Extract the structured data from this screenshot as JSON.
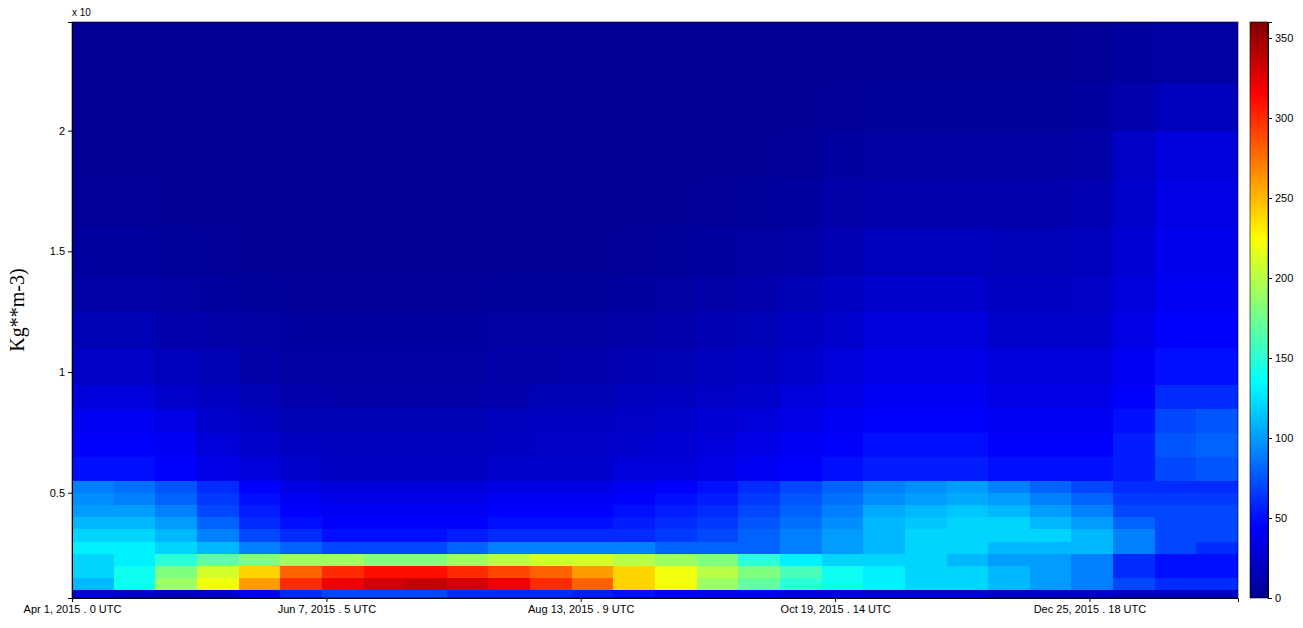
{
  "chart_data": {
    "type": "heatmap",
    "y_axis_multiplier": "x 10",
    "y_label": "Kg**m-3)",
    "xlim": [
      "2015-04-01T00:00Z",
      "2016-02-03T00:00Z"
    ],
    "xticks": [
      {
        "value": "2015-04-01T00:00Z",
        "label": "Apr 1, 2015 . 0 UTC"
      },
      {
        "value": "2015-06-07T05:00Z",
        "label": "Jun 7, 2015 . 5 UTC"
      },
      {
        "value": "2015-08-13T09:00Z",
        "label": "Aug 13, 2015 . 9 UTC"
      },
      {
        "value": "2015-10-19T14:00Z",
        "label": "Oct 19, 2015 . 14 UTC"
      },
      {
        "value": "2015-12-25T18:00Z",
        "label": "Dec 25, 2015 . 18 UTC"
      }
    ],
    "ylim": [
      0.064,
      2.45
    ],
    "yticks": [
      0.5,
      1,
      1.5,
      2
    ],
    "x": [
      "2015-04-01T00:00Z",
      "2015-04-12T00:00Z",
      "2015-04-23T00:00Z",
      "2015-05-04T00:00Z",
      "2015-05-15T00:00Z",
      "2015-05-26T00:00Z",
      "2015-06-06T00:00Z",
      "2015-06-17T00:00Z",
      "2015-06-28T00:00Z",
      "2015-07-09T00:00Z",
      "2015-07-20T00:00Z",
      "2015-07-31T00:00Z",
      "2015-08-11T00:00Z",
      "2015-08-22T00:00Z",
      "2015-09-02T00:00Z",
      "2015-09-13T00:00Z",
      "2015-09-24T00:00Z",
      "2015-10-05T00:00Z",
      "2015-10-16T00:00Z",
      "2015-10-27T00:00Z",
      "2015-11-07T00:00Z",
      "2015-11-18T00:00Z",
      "2015-11-29T00:00Z",
      "2015-12-10T00:00Z",
      "2015-12-21T00:00Z",
      "2016-01-01T00:00Z",
      "2016-01-12T00:00Z",
      "2016-01-23T00:00Z"
    ],
    "y": [
      0.064,
      0.1,
      0.15,
      0.2,
      0.25,
      0.3,
      0.35,
      0.4,
      0.45,
      0.5,
      0.55,
      0.65,
      0.75,
      0.85,
      0.95,
      1.1,
      1.25,
      1.4,
      1.6,
      1.8,
      2.0,
      2.2
    ],
    "values": [
      [
        30,
        25,
        20,
        25,
        40,
        60,
        70,
        70,
        70,
        60,
        60,
        60,
        55,
        50,
        45,
        40,
        40,
        35,
        35,
        30,
        30,
        30,
        25,
        25,
        25,
        20,
        20,
        20
      ],
      [
        110,
        140,
        190,
        220,
        260,
        300,
        320,
        330,
        335,
        330,
        320,
        300,
        280,
        240,
        220,
        190,
        170,
        150,
        140,
        130,
        120,
        120,
        110,
        100,
        90,
        70,
        60,
        60
      ],
      [
        120,
        140,
        180,
        210,
        240,
        280,
        300,
        310,
        310,
        300,
        290,
        280,
        260,
        240,
        220,
        200,
        180,
        160,
        140,
        130,
        120,
        120,
        110,
        100,
        90,
        60,
        50,
        50
      ],
      [
        120,
        130,
        150,
        170,
        180,
        190,
        190,
        180,
        180,
        190,
        200,
        210,
        210,
        200,
        190,
        180,
        150,
        130,
        120,
        120,
        120,
        110,
        100,
        100,
        90,
        60,
        50,
        50
      ],
      [
        130,
        130,
        120,
        110,
        90,
        80,
        70,
        70,
        70,
        80,
        90,
        90,
        90,
        90,
        80,
        80,
        80,
        90,
        100,
        110,
        120,
        120,
        110,
        110,
        110,
        90,
        70,
        60
      ],
      [
        120,
        120,
        110,
        90,
        70,
        60,
        50,
        50,
        50,
        55,
        60,
        60,
        60,
        60,
        65,
        70,
        80,
        90,
        100,
        110,
        120,
        120,
        120,
        120,
        110,
        90,
        70,
        70
      ],
      [
        110,
        110,
        100,
        80,
        60,
        50,
        45,
        45,
        45,
        45,
        50,
        50,
        50,
        55,
        60,
        65,
        75,
        85,
        95,
        110,
        115,
        120,
        120,
        110,
        100,
        80,
        70,
        70
      ],
      [
        100,
        100,
        90,
        70,
        55,
        45,
        40,
        40,
        40,
        40,
        45,
        45,
        45,
        50,
        55,
        60,
        70,
        80,
        90,
        105,
        110,
        115,
        110,
        100,
        90,
        70,
        70,
        70
      ],
      [
        95,
        90,
        80,
        65,
        50,
        40,
        35,
        35,
        35,
        35,
        40,
        40,
        40,
        45,
        50,
        55,
        65,
        75,
        85,
        95,
        100,
        105,
        100,
        90,
        80,
        65,
        65,
        65
      ],
      [
        90,
        85,
        75,
        60,
        45,
        35,
        30,
        30,
        30,
        30,
        35,
        35,
        35,
        40,
        45,
        50,
        60,
        70,
        80,
        90,
        95,
        100,
        90,
        80,
        70,
        60,
        60,
        60
      ],
      [
        50,
        50,
        45,
        35,
        30,
        25,
        20,
        20,
        20,
        20,
        25,
        25,
        25,
        30,
        30,
        35,
        40,
        45,
        50,
        55,
        55,
        55,
        50,
        50,
        50,
        55,
        70,
        75
      ],
      [
        45,
        45,
        40,
        30,
        25,
        20,
        18,
        18,
        18,
        18,
        20,
        22,
        22,
        25,
        28,
        30,
        35,
        40,
        45,
        50,
        50,
        50,
        45,
        45,
        45,
        55,
        75,
        80
      ],
      [
        40,
        40,
        35,
        25,
        20,
        15,
        15,
        15,
        15,
        15,
        18,
        20,
        20,
        22,
        25,
        28,
        30,
        35,
        40,
        45,
        45,
        45,
        40,
        40,
        40,
        50,
        70,
        75
      ],
      [
        30,
        30,
        25,
        20,
        15,
        12,
        10,
        10,
        10,
        10,
        12,
        15,
        15,
        18,
        20,
        22,
        25,
        30,
        35,
        40,
        40,
        40,
        35,
        35,
        35,
        45,
        60,
        60
      ],
      [
        22,
        22,
        18,
        15,
        10,
        8,
        8,
        8,
        8,
        8,
        10,
        10,
        12,
        14,
        15,
        18,
        20,
        25,
        30,
        35,
        35,
        35,
        30,
        30,
        30,
        40,
        50,
        50
      ],
      [
        15,
        15,
        12,
        10,
        8,
        6,
        6,
        6,
        6,
        6,
        8,
        8,
        8,
        10,
        12,
        14,
        16,
        20,
        25,
        30,
        30,
        30,
        25,
        25,
        25,
        35,
        45,
        45
      ],
      [
        10,
        10,
        8,
        6,
        5,
        4,
        4,
        4,
        4,
        4,
        5,
        5,
        5,
        6,
        8,
        10,
        12,
        15,
        20,
        25,
        25,
        25,
        20,
        20,
        22,
        30,
        40,
        40
      ],
      [
        6,
        6,
        5,
        4,
        3,
        3,
        3,
        3,
        3,
        3,
        3,
        3,
        3,
        4,
        5,
        6,
        8,
        10,
        14,
        18,
        18,
        18,
        16,
        16,
        18,
        28,
        38,
        38
      ],
      [
        4,
        4,
        3,
        3,
        2,
        2,
        2,
        2,
        2,
        2,
        2,
        2,
        2,
        3,
        3,
        4,
        5,
        6,
        10,
        12,
        12,
        12,
        12,
        12,
        14,
        25,
        35,
        35
      ],
      [
        3,
        3,
        2,
        2,
        2,
        2,
        2,
        2,
        2,
        2,
        2,
        2,
        2,
        2,
        2,
        3,
        3,
        4,
        6,
        8,
        8,
        8,
        8,
        8,
        10,
        22,
        30,
        30
      ],
      [
        2,
        2,
        2,
        2,
        2,
        2,
        2,
        2,
        2,
        2,
        2,
        2,
        2,
        2,
        2,
        2,
        2,
        3,
        4,
        5,
        5,
        5,
        5,
        5,
        6,
        12,
        18,
        18
      ],
      [
        2,
        2,
        2,
        2,
        2,
        2,
        2,
        2,
        2,
        2,
        2,
        2,
        2,
        2,
        2,
        2,
        2,
        2,
        2,
        3,
        3,
        3,
        3,
        3,
        4,
        6,
        8,
        8
      ]
    ],
    "colorbar": {
      "range": [
        0,
        360
      ],
      "ticks": [
        0,
        50,
        100,
        150,
        200,
        250,
        300,
        350
      ]
    }
  }
}
